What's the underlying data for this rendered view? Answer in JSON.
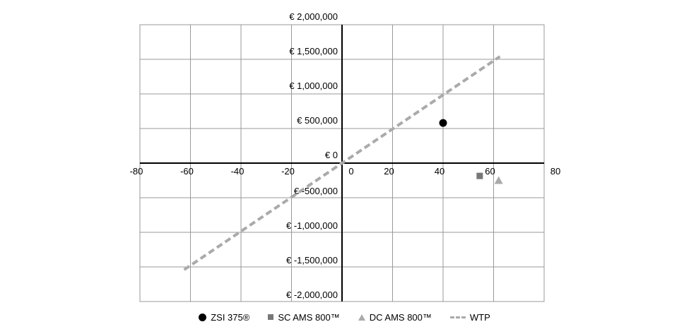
{
  "chart_data": {
    "type": "scatter",
    "xlim": [
      -80,
      80
    ],
    "ylim": [
      -2000000,
      2000000
    ],
    "x_ticks": [
      {
        "value": -80,
        "label": "-80"
      },
      {
        "value": -60,
        "label": "-60"
      },
      {
        "value": -40,
        "label": "-40"
      },
      {
        "value": -20,
        "label": "-20"
      },
      {
        "value": 0,
        "label": "0"
      },
      {
        "value": 20,
        "label": "20"
      },
      {
        "value": 40,
        "label": "40"
      },
      {
        "value": 60,
        "label": "60"
      },
      {
        "value": 80,
        "label": "80"
      }
    ],
    "y_ticks": [
      {
        "value": 2000000,
        "label": "€ 2,000,000"
      },
      {
        "value": 1500000,
        "label": "€ 1,500,000"
      },
      {
        "value": 1000000,
        "label": "€ 1,000,000"
      },
      {
        "value": 500000,
        "label": "€ 500,000"
      },
      {
        "value": 0,
        "label": "€ 0"
      },
      {
        "value": -500000,
        "label": "€ -500,000"
      },
      {
        "value": -1000000,
        "label": "€ -1,000,000"
      },
      {
        "value": -1500000,
        "label": "€ -1,500,000"
      },
      {
        "value": -2000000,
        "label": "€ -2,000,000"
      }
    ],
    "grid": true,
    "legend_position": "bottom",
    "series": [
      {
        "name": "ZSI 375®",
        "marker": "circle",
        "color": "#000000",
        "points": [
          {
            "x": 40,
            "y": 580000
          }
        ]
      },
      {
        "name": "SC AMS 800™",
        "marker": "square",
        "color": "#777777",
        "points": [
          {
            "x": 54.5,
            "y": -185000
          }
        ]
      },
      {
        "name": "DC AMS 800™",
        "marker": "triangle",
        "color": "#aaaaaa",
        "points": [
          {
            "x": 62,
            "y": -250000
          }
        ]
      }
    ],
    "line": {
      "name": "WTP",
      "style": "dashed",
      "color": "#aaaaaa",
      "points": [
        {
          "x": -62.5,
          "y": -1540000
        },
        {
          "x": 62.5,
          "y": 1540000
        }
      ]
    }
  }
}
